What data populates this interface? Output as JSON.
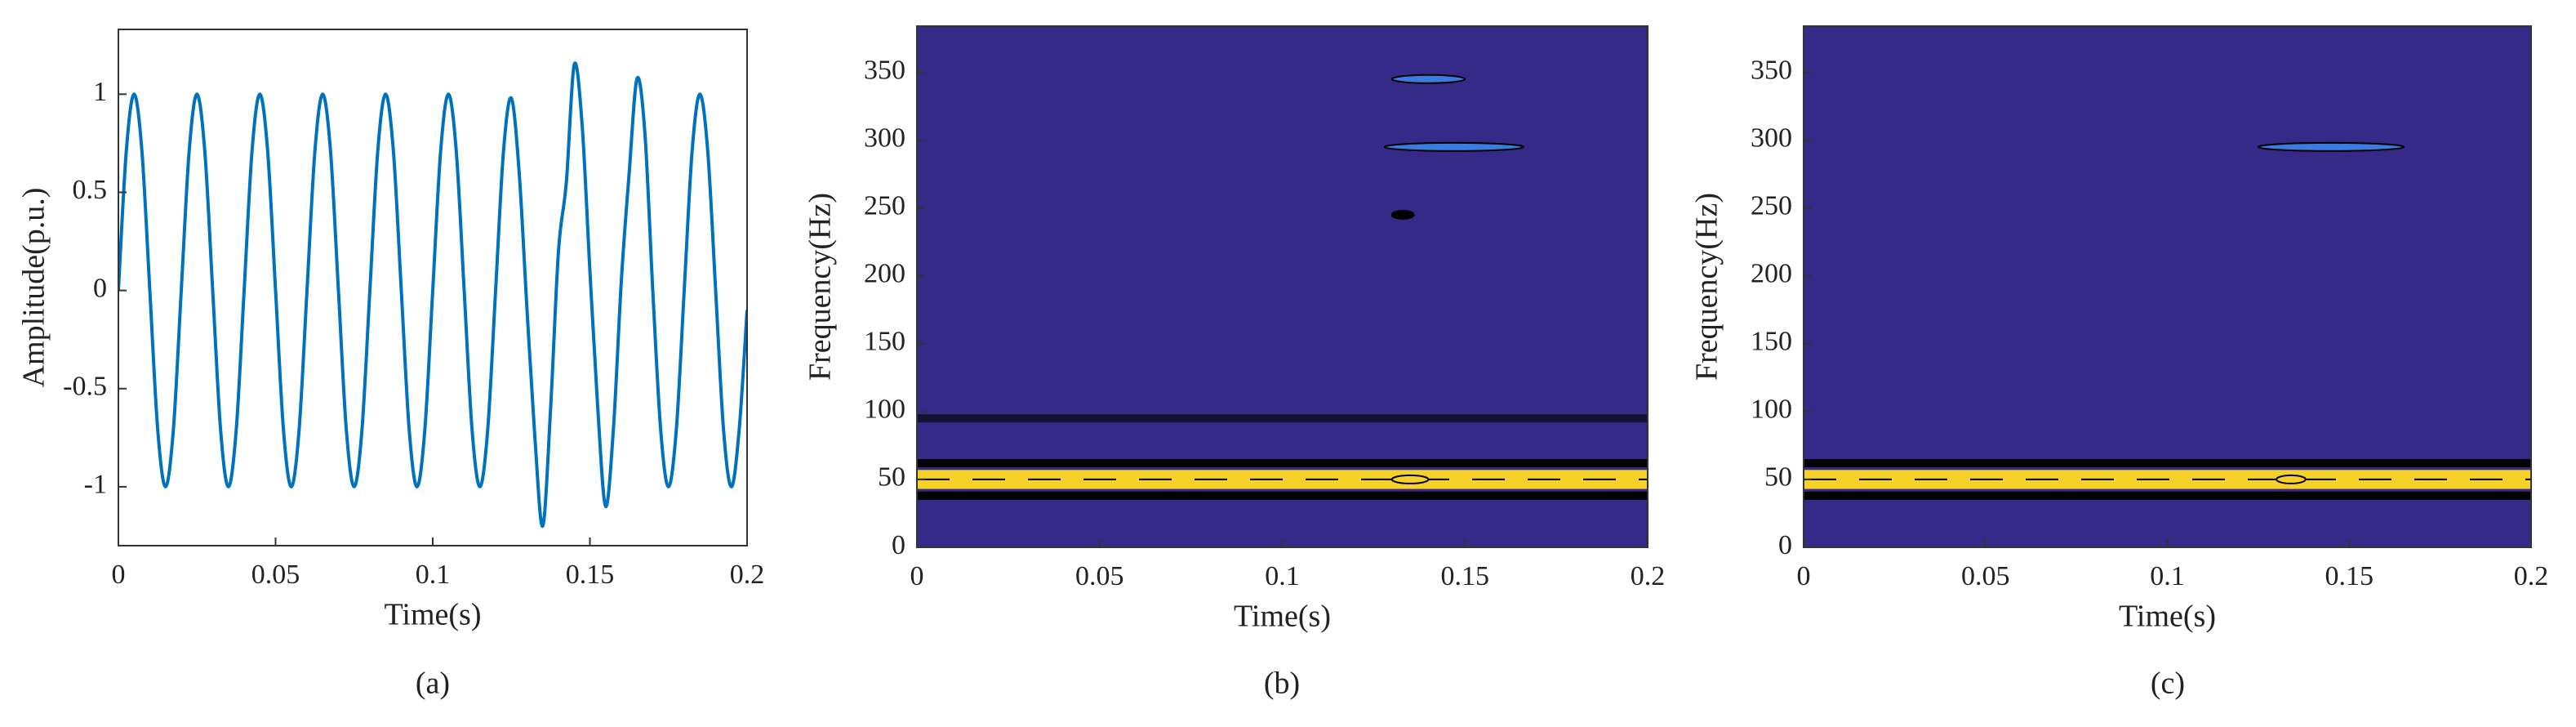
{
  "chart_data": [
    {
      "type": "line",
      "caption": "(a)",
      "x_label": "Time(s)",
      "y_label": "Amplitude(p.u.)",
      "xlim": [
        0,
        0.2
      ],
      "ylim": [
        -1.3,
        1.33
      ],
      "xticks": [
        0,
        0.05,
        0.1,
        0.15,
        0.2
      ],
      "yticks": [
        -1,
        -0.5,
        0,
        0.5,
        1
      ],
      "series": [
        {
          "color": "#0072bd",
          "x": [
            0,
            0.0025,
            0.005,
            0.0075,
            0.01,
            0.0125,
            0.015,
            0.0175,
            0.02,
            0.0225,
            0.025,
            0.0275,
            0.03,
            0.0325,
            0.035,
            0.0375,
            0.04,
            0.0425,
            0.045,
            0.0475,
            0.05,
            0.0525,
            0.055,
            0.0575,
            0.06,
            0.0625,
            0.065,
            0.0675,
            0.07,
            0.0725,
            0.075,
            0.0775,
            0.08,
            0.0825,
            0.085,
            0.0875,
            0.09,
            0.0925,
            0.095,
            0.0975,
            0.1,
            0.1025,
            0.105,
            0.1075,
            0.11,
            0.1125,
            0.115,
            0.1175,
            0.12,
            0.1225,
            0.125,
            0.1275,
            0.13,
            0.1325,
            0.135,
            0.1375,
            0.14,
            0.1425,
            0.145,
            0.1475,
            0.15,
            0.1525,
            0.155,
            0.1575,
            0.16,
            0.1625,
            0.165,
            0.1675,
            0.17,
            0.1725,
            0.175,
            0.1775,
            0.18,
            0.1825,
            0.185,
            0.1875,
            0.19,
            0.1925,
            0.195,
            0.1975,
            0.2
          ],
          "values": [
            0,
            0.707,
            1,
            0.707,
            0,
            -0.707,
            -1,
            -0.707,
            0,
            0.707,
            1,
            0.707,
            0,
            -0.707,
            -1,
            -0.707,
            0,
            0.707,
            1,
            0.707,
            0,
            -0.707,
            -1,
            -0.707,
            0,
            0.707,
            1,
            0.707,
            0,
            -0.707,
            -1,
            -0.707,
            0,
            0.707,
            1,
            0.707,
            0,
            -0.707,
            -1,
            -0.707,
            0,
            0.707,
            1,
            0.707,
            0,
            -0.707,
            -1,
            -0.707,
            0,
            0.707,
            0.98,
            0.6,
            -0.1,
            -0.75,
            -1.2,
            -0.6,
            0.2,
            0.55,
            1.15,
            0.85,
            0.1,
            -0.6,
            -1.1,
            -0.7,
            0.05,
            0.6,
            1.08,
            0.8,
            0,
            -0.707,
            -1,
            -0.707,
            0,
            0.707,
            1,
            0.707,
            0,
            -0.707,
            -1,
            -0.707,
            -0.1
          ]
        }
      ]
    },
    {
      "type": "contour",
      "caption": "(b)",
      "x_label": "Time(s)",
      "y_label": "Frequency(Hz)",
      "xlim": [
        0,
        0.2
      ],
      "ylim": [
        0,
        384
      ],
      "xticks": [
        0,
        0.05,
        0.1,
        0.15,
        0.2
      ],
      "yticks": [
        0,
        50,
        100,
        150,
        200,
        250,
        300,
        350
      ],
      "background": "#352a87",
      "bands": [
        {
          "y": [
            43,
            57
          ],
          "color": "#f5d12a"
        }
      ],
      "levels": [
        {
          "y": 62,
          "color": "#000000",
          "style": "solid"
        },
        {
          "y": 38,
          "color": "#000000",
          "style": "solid"
        },
        {
          "y": 50,
          "color": "#000000",
          "style": "dashed"
        },
        {
          "y": 95,
          "color": "#111133",
          "style": "solid"
        }
      ],
      "ellipses": [
        {
          "x": [
            0.13,
            0.15
          ],
          "y": 345,
          "color": "#3a7de0"
        },
        {
          "x": [
            0.128,
            0.166
          ],
          "y": 295,
          "color": "#3a7de0"
        },
        {
          "x": [
            0.13,
            0.136
          ],
          "y": 245,
          "color": "#000000"
        },
        {
          "x": [
            0.13,
            0.14
          ],
          "y": 50,
          "color": "#f5d12a"
        }
      ]
    },
    {
      "type": "contour",
      "caption": "(c)",
      "x_label": "Time(s)",
      "y_label": "Frequency(Hz)",
      "xlim": [
        0,
        0.2
      ],
      "ylim": [
        0,
        384
      ],
      "xticks": [
        0,
        0.05,
        0.1,
        0.15,
        0.2
      ],
      "yticks": [
        0,
        50,
        100,
        150,
        200,
        250,
        300,
        350
      ],
      "background": "#352a87",
      "bands": [
        {
          "y": [
            43,
            57
          ],
          "color": "#f5d12a"
        }
      ],
      "levels": [
        {
          "y": 62,
          "color": "#000000",
          "style": "solid"
        },
        {
          "y": 38,
          "color": "#000000",
          "style": "solid"
        },
        {
          "y": 50,
          "color": "#000000",
          "style": "dashed"
        }
      ],
      "ellipses": [
        {
          "x": [
            0.125,
            0.165
          ],
          "y": 295,
          "color": "#3a7de0"
        },
        {
          "x": [
            0.13,
            0.138
          ],
          "y": 50,
          "color": "#f5d12a"
        }
      ]
    }
  ]
}
